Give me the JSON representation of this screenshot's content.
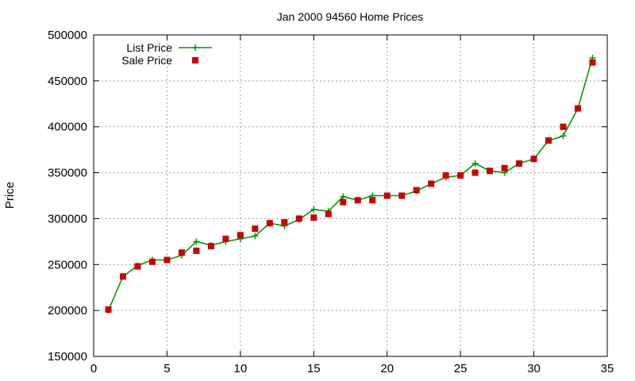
{
  "chart_data": {
    "type": "line",
    "title": "Jan 2000 94560 Home Prices",
    "xlabel": "",
    "ylabel": "Price",
    "xlim": [
      0,
      35
    ],
    "ylim": [
      150000,
      500000
    ],
    "xticks": [
      0,
      5,
      10,
      15,
      20,
      25,
      30,
      35
    ],
    "yticks": [
      150000,
      200000,
      250000,
      300000,
      350000,
      400000,
      450000,
      500000
    ],
    "grid": true,
    "legend_position": "top-left",
    "x": [
      1,
      2,
      3,
      4,
      5,
      6,
      7,
      8,
      9,
      10,
      11,
      12,
      13,
      14,
      15,
      16,
      17,
      18,
      19,
      20,
      21,
      22,
      23,
      24,
      25,
      26,
      27,
      28,
      29,
      30,
      31,
      32,
      33,
      34
    ],
    "series": [
      {
        "name": "List Price",
        "style": "lines+plus",
        "color": "#009900",
        "values": [
          200000,
          237000,
          249000,
          255000,
          255000,
          260000,
          275000,
          271000,
          275000,
          278000,
          281000,
          295000,
          292000,
          299000,
          310000,
          308000,
          324000,
          320000,
          325000,
          325000,
          325000,
          330000,
          338000,
          345000,
          347000,
          360000,
          352000,
          350000,
          360000,
          365000,
          385000,
          390000,
          420000,
          475000
        ]
      },
      {
        "name": "Sale Price",
        "style": "squares",
        "color": "#cc0000",
        "values": [
          201000,
          237000,
          248000,
          253000,
          255000,
          263000,
          265000,
          270000,
          278000,
          282000,
          289000,
          295000,
          296000,
          300000,
          301000,
          305000,
          318000,
          320000,
          320000,
          325000,
          325000,
          331000,
          338000,
          347000,
          347000,
          350000,
          352000,
          355000,
          360000,
          365000,
          385000,
          400000,
          420000,
          470000
        ]
      }
    ]
  }
}
